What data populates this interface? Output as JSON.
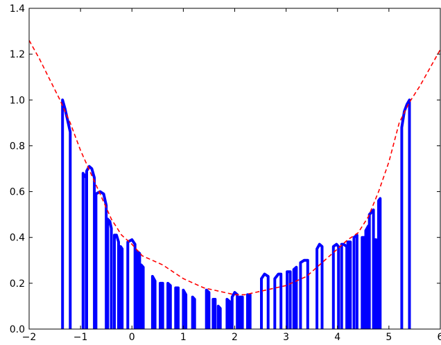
{
  "chart_data": {
    "type": "line",
    "title": "",
    "xlabel": "",
    "ylabel": "",
    "xlim": [
      -2,
      6
    ],
    "ylim": [
      0,
      1.4
    ],
    "grid": false,
    "legend": "none",
    "x_ticks": [
      "−2",
      "−1",
      "0",
      "1",
      "2",
      "3",
      "4",
      "5",
      "6"
    ],
    "y_ticks": [
      "0.0",
      "0.2",
      "0.4",
      "0.6",
      "0.8",
      "1.0",
      "1.2",
      "1.4"
    ],
    "series": [
      {
        "style": "dashed",
        "color": "#ff0000",
        "x": [
          -2.0,
          -1.8,
          -1.6,
          -1.4,
          -1.2,
          -1.0,
          -0.8,
          -0.6,
          -0.4,
          -0.2,
          0.0,
          0.2,
          0.4,
          0.6,
          0.8,
          1.0,
          1.2,
          1.4,
          1.6,
          1.8,
          2.0,
          2.2,
          2.4,
          2.6,
          2.8,
          3.0,
          3.2,
          3.4,
          3.6,
          3.8,
          4.0,
          4.2,
          4.4,
          4.6,
          4.8,
          5.0,
          5.2,
          5.4,
          5.6,
          5.8,
          6.0
        ],
        "y": [
          1.26,
          1.18,
          1.09,
          1.0,
          0.9,
          0.78,
          0.68,
          0.58,
          0.48,
          0.41,
          0.37,
          0.32,
          0.3,
          0.28,
          0.25,
          0.22,
          0.2,
          0.18,
          0.17,
          0.16,
          0.15,
          0.15,
          0.16,
          0.17,
          0.18,
          0.19,
          0.21,
          0.23,
          0.27,
          0.31,
          0.35,
          0.39,
          0.42,
          0.49,
          0.6,
          0.73,
          0.9,
          0.99,
          1.06,
          1.14,
          1.22
        ]
      },
      {
        "style": "spikes",
        "color": "#0000ff",
        "spikes": [
          {
            "x": [
              -1.35,
              -1.3,
              -1.25,
              -1.2
            ],
            "y": [
              1.0,
              0.96,
              0.91,
              0.86
            ]
          },
          {
            "x": [
              -0.95,
              -0.92,
              -0.89
            ],
            "y": [
              0.68,
              0.67,
              0.66
            ]
          },
          {
            "x": [
              -0.88,
              -0.83,
              -0.78,
              -0.73
            ],
            "y": [
              0.69,
              0.71,
              0.7,
              0.66
            ]
          },
          {
            "x": [
              -0.7,
              -0.62,
              -0.55,
              -0.5
            ],
            "y": [
              0.59,
              0.6,
              0.59,
              0.54
            ]
          },
          {
            "x": [
              -0.47,
              -0.43,
              -0.4
            ],
            "y": [
              0.48,
              0.47,
              0.44
            ]
          },
          {
            "x": [
              -0.34,
              -0.3,
              -0.26
            ],
            "y": [
              0.41,
              0.41,
              0.38
            ]
          },
          {
            "x": [
              -0.22,
              -0.19
            ],
            "y": [
              0.36,
              0.35
            ]
          },
          {
            "x": [
              -0.08,
              0.0,
              0.06
            ],
            "y": [
              0.38,
              0.39,
              0.37
            ]
          },
          {
            "x": [
              0.1,
              0.15
            ],
            "y": [
              0.34,
              0.33
            ]
          },
          {
            "x": [
              0.18,
              0.22
            ],
            "y": [
              0.28,
              0.27
            ]
          },
          {
            "x": [
              0.4,
              0.45
            ],
            "y": [
              0.23,
              0.21
            ]
          },
          {
            "x": [
              0.55,
              0.6
            ],
            "y": [
              0.2,
              0.2
            ]
          },
          {
            "x": [
              0.7,
              0.75
            ],
            "y": [
              0.2,
              0.19
            ]
          },
          {
            "x": [
              0.85,
              0.9
            ],
            "y": [
              0.18,
              0.18
            ]
          },
          {
            "x": [
              1.0,
              1.05
            ],
            "y": [
              0.17,
              0.15
            ]
          },
          {
            "x": [
              1.18,
              1.22
            ],
            "y": [
              0.14,
              0.13
            ]
          },
          {
            "x": [
              1.45,
              1.5
            ],
            "y": [
              0.17,
              0.16
            ]
          },
          {
            "x": [
              1.58,
              1.62
            ],
            "y": [
              0.13,
              0.13
            ]
          },
          {
            "x": [
              1.68,
              1.72
            ],
            "y": [
              0.1,
              0.09
            ]
          },
          {
            "x": [
              1.85,
              1.9
            ],
            "y": [
              0.13,
              0.12
            ]
          },
          {
            "x": [
              1.95,
              2.0,
              2.05
            ],
            "y": [
              0.14,
              0.16,
              0.15
            ]
          },
          {
            "x": [
              2.1,
              2.15
            ],
            "y": [
              0.14,
              0.14
            ]
          },
          {
            "x": [
              2.25,
              2.3
            ],
            "y": [
              0.15,
              0.15
            ]
          },
          {
            "x": [
              2.52,
              2.58,
              2.65
            ],
            "y": [
              0.22,
              0.24,
              0.23
            ]
          },
          {
            "x": [
              2.78,
              2.85,
              2.9
            ],
            "y": [
              0.22,
              0.24,
              0.24
            ]
          },
          {
            "x": [
              3.02,
              3.08
            ],
            "y": [
              0.25,
              0.25
            ]
          },
          {
            "x": [
              3.15,
              3.2
            ],
            "y": [
              0.26,
              0.27
            ]
          },
          {
            "x": [
              3.28,
              3.35,
              3.42
            ],
            "y": [
              0.29,
              0.3,
              0.3
            ]
          },
          {
            "x": [
              3.6,
              3.65,
              3.7
            ],
            "y": [
              0.35,
              0.37,
              0.36
            ]
          },
          {
            "x": [
              3.92,
              3.98,
              4.02
            ],
            "y": [
              0.36,
              0.37,
              0.36
            ]
          },
          {
            "x": [
              4.08,
              4.12,
              4.18
            ],
            "y": [
              0.37,
              0.37,
              0.36
            ]
          },
          {
            "x": [
              4.2,
              4.25
            ],
            "y": [
              0.38,
              0.38
            ]
          },
          {
            "x": [
              4.32,
              4.38
            ],
            "y": [
              0.4,
              0.41
            ]
          },
          {
            "x": [
              4.48,
              4.52
            ],
            "y": [
              0.4,
              0.4
            ]
          },
          {
            "x": [
              4.55,
              4.6
            ],
            "y": [
              0.43,
              0.45
            ]
          },
          {
            "x": [
              4.62,
              4.66,
              4.7
            ],
            "y": [
              0.5,
              0.51,
              0.52
            ]
          },
          {
            "x": [
              4.72,
              4.75
            ],
            "y": [
              0.39,
              0.39
            ]
          },
          {
            "x": [
              4.8,
              4.83
            ],
            "y": [
              0.56,
              0.57
            ]
          },
          {
            "x": [
              5.25,
              5.3,
              5.35,
              5.4
            ],
            "y": [
              0.88,
              0.95,
              0.98,
              1.0
            ]
          }
        ]
      }
    ]
  }
}
